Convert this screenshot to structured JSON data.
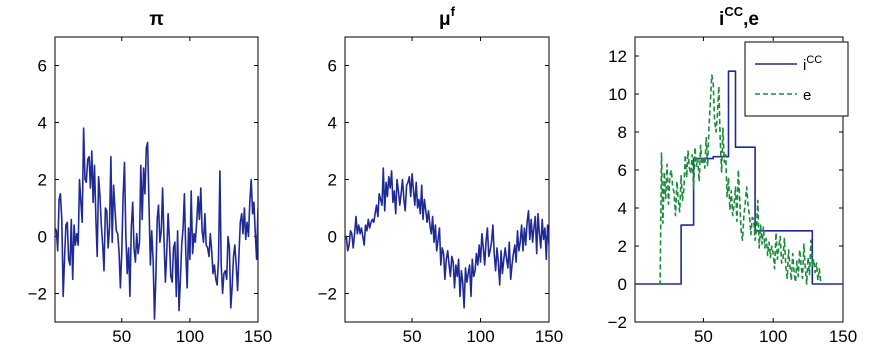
{
  "colors": {
    "blue": "#1f2a96",
    "green": "#1a8c3a"
  },
  "chart_data": [
    {
      "type": "line",
      "title": {
        "main": "π",
        "sup": ""
      },
      "xlim": [
        1,
        150
      ],
      "ylim": [
        -3,
        7
      ],
      "xticks": [
        50,
        100,
        150
      ],
      "yticks": [
        -2,
        0,
        2,
        4,
        6
      ],
      "ytick_labels": [
        "−2",
        "0",
        "2",
        "4",
        "6"
      ],
      "series": [
        {
          "color": "#1f2a96",
          "style": "solid",
          "x": [
            1,
            2,
            3,
            4,
            5,
            6,
            7,
            8,
            9,
            10,
            11,
            12,
            13,
            14,
            15,
            16,
            17,
            18,
            19,
            20,
            21,
            22,
            23,
            24,
            25,
            26,
            27,
            28,
            29,
            30,
            31,
            32,
            33,
            34,
            35,
            36,
            37,
            38,
            39,
            40,
            41,
            42,
            43,
            44,
            45,
            46,
            47,
            48,
            49,
            50,
            51,
            52,
            53,
            54,
            55,
            56,
            57,
            58,
            59,
            60,
            61,
            62,
            63,
            64,
            65,
            66,
            67,
            68,
            69,
            70,
            71,
            72,
            73,
            74,
            75,
            76,
            77,
            78,
            79,
            80,
            81,
            82,
            83,
            84,
            85,
            86,
            87,
            88,
            89,
            90,
            91,
            92,
            93,
            94,
            95,
            96,
            97,
            98,
            99,
            100,
            101,
            102,
            103,
            104,
            105,
            106,
            107,
            108,
            109,
            110,
            111,
            112,
            113,
            114,
            115,
            116,
            117,
            118,
            119,
            120,
            121,
            122,
            123,
            124,
            125,
            126,
            127,
            128,
            129,
            130,
            131,
            132,
            133,
            134,
            135,
            136,
            137,
            138,
            139,
            140,
            141,
            142,
            143,
            144,
            145,
            146,
            147,
            148,
            149,
            150
          ],
          "values": [
            0.3,
            0.2,
            -0.5,
            1.3,
            1.5,
            0.6,
            -2.1,
            -0.8,
            0.4,
            0.5,
            -0.8,
            -1.0,
            0.6,
            -1.5,
            0.4,
            -0.3,
            0.1,
            -0.3,
            2.0,
            1.2,
            0.5,
            3.8,
            2.0,
            1.9,
            2.7,
            2.8,
            1.7,
            3.0,
            1.2,
            2.5,
            0.6,
            -0.7,
            2.1,
            1.4,
            0.4,
            -0.3,
            -1.2,
            1.0,
            0.9,
            -0.4,
            0.3,
            2.8,
            -0.2,
            1.8,
            1.0,
            0.2,
            0.1,
            -0.5,
            -1.8,
            -0.5,
            1.4,
            2.6,
            0.1,
            -1.3,
            -0.4,
            -2.1,
            0.3,
            1.2,
            -0.4,
            -0.9,
            0.1,
            -0.6,
            -0.2,
            2.5,
            0.6,
            2.4,
            1.5,
            3.1,
            3.3,
            1.1,
            -1.0,
            0.2,
            -0.8,
            -2.9,
            -1.5,
            0.6,
            1.1,
            -0.2,
            0.2,
            1.7,
            -0.1,
            -1.6,
            -0.6,
            0.8,
            -0.1,
            -1.4,
            -1.6,
            -0.4,
            -0.2,
            -2.1,
            0.2,
            -2.6,
            -1.6,
            -0.3,
            0.3,
            1.5,
            -0.6,
            -1.8,
            0.3,
            -0.8,
            1.6,
            -0.6,
            0.1,
            -0.2,
            0.5,
            1.4,
            0.6,
            1.7,
            0.2,
            -0.2,
            0.8,
            -0.3,
            -0.4,
            -0.7,
            0.1,
            -0.5,
            -1.3,
            -1.0,
            -1.5,
            -1.7,
            -0.8,
            2.3,
            -1.0,
            -2.0,
            -1.3,
            -1.2,
            -1.5,
            0.0,
            -0.4,
            -2.5,
            -1.8,
            -0.7,
            -0.3,
            -1.0,
            -1.9,
            -0.7,
            0.5,
            0.8,
            0.1,
            1.0,
            -0.1,
            0.5,
            0.0,
            1.2,
            2.0,
            0.8,
            1.2,
            0.1,
            -0.8,
            1.0
          ]
        }
      ]
    },
    {
      "type": "line",
      "title": {
        "main": "μ",
        "sup": "f"
      },
      "xlim": [
        1,
        150
      ],
      "ylim": [
        -3,
        7
      ],
      "xticks": [
        50,
        100,
        150
      ],
      "yticks": [
        -2,
        0,
        2,
        4,
        6
      ],
      "ytick_labels": [
        "−2",
        "0",
        "2",
        "4",
        "6"
      ],
      "series": [
        {
          "color": "#1f2a96",
          "style": "solid",
          "x": [
            1,
            2,
            3,
            4,
            5,
            6,
            7,
            8,
            9,
            10,
            11,
            12,
            13,
            14,
            15,
            16,
            17,
            18,
            19,
            20,
            21,
            22,
            23,
            24,
            25,
            26,
            27,
            28,
            29,
            30,
            31,
            32,
            33,
            34,
            35,
            36,
            37,
            38,
            39,
            40,
            41,
            42,
            43,
            44,
            45,
            46,
            47,
            48,
            49,
            50,
            51,
            52,
            53,
            54,
            55,
            56,
            57,
            58,
            59,
            60,
            61,
            62,
            63,
            64,
            65,
            66,
            67,
            68,
            69,
            70,
            71,
            72,
            73,
            74,
            75,
            76,
            77,
            78,
            79,
            80,
            81,
            82,
            83,
            84,
            85,
            86,
            87,
            88,
            89,
            90,
            91,
            92,
            93,
            94,
            95,
            96,
            97,
            98,
            99,
            100,
            101,
            102,
            103,
            104,
            105,
            106,
            107,
            108,
            109,
            110,
            111,
            112,
            113,
            114,
            115,
            116,
            117,
            118,
            119,
            120,
            121,
            122,
            123,
            124,
            125,
            126,
            127,
            128,
            129,
            130,
            131,
            132,
            133,
            134,
            135,
            136,
            137,
            138,
            139,
            140,
            141,
            142,
            143,
            144,
            145,
            146,
            147,
            148,
            149,
            150
          ],
          "values": [
            -0.1,
            0.0,
            -0.5,
            -0.3,
            0.2,
            0.1,
            -0.4,
            0.1,
            0.7,
            0.1,
            0.4,
            0.1,
            0.3,
            0.0,
            -0.3,
            0.4,
            0.2,
            0.6,
            0.3,
            0.5,
            0.6,
            0.5,
            0.8,
            1.1,
            0.7,
            1.5,
            1.3,
            1.1,
            2.4,
            0.9,
            1.9,
            1.4,
            2.1,
            1.7,
            2.3,
            1.2,
            1.6,
            0.8,
            2.0,
            1.6,
            1.1,
            1.5,
            2.0,
            1.3,
            0.9,
            1.8,
            1.9,
            2.1,
            1.4,
            2.2,
            1.6,
            1.1,
            1.9,
            1.0,
            1.3,
            0.8,
            1.8,
            0.6,
            1.3,
            0.9,
            0.5,
            0.9,
            0.4,
            0.1,
            0.7,
            -0.2,
            0.4,
            -0.5,
            -0.1,
            0.3,
            -1.0,
            -0.4,
            -0.6,
            -1.5,
            -0.8,
            -0.5,
            -1.0,
            -1.4,
            -0.7,
            -0.9,
            -1.8,
            -1.0,
            -1.4,
            -0.8,
            -2.1,
            -1.2,
            -1.6,
            -2.5,
            -1.1,
            -1.6,
            -1.3,
            -1.0,
            -2.1,
            -0.8,
            -1.4,
            -1.2,
            -0.6,
            -1.0,
            -0.3,
            -0.9,
            0.1,
            -0.4,
            -1.0,
            -0.2,
            0.3,
            -0.7,
            -0.5,
            -0.2,
            0.4,
            -0.6,
            -1.2,
            -0.4,
            -0.9,
            -1.7,
            -0.5,
            -1.3,
            -0.8,
            -0.4,
            -0.8,
            -1.1,
            -0.2,
            -1.5,
            -1.0,
            -0.6,
            -0.3,
            -0.9,
            0.2,
            -0.5,
            -0.2,
            0.4,
            -0.5,
            0.3,
            -0.3,
            0.5,
            0.9,
            -0.1,
            0.6,
            -0.2,
            0.3,
            0.7,
            -0.6,
            0.8,
            0.1,
            -0.4,
            0.6,
            -0.1,
            0.3,
            -0.8,
            0.4,
            -0.3
          ]
        }
      ]
    },
    {
      "type": "line",
      "title": {
        "main": "i",
        "sup": "CC",
        "suffix": ",e"
      },
      "xlim": [
        1,
        150
      ],
      "ylim": [
        -2,
        13
      ],
      "xticks": [
        50,
        100,
        150
      ],
      "yticks": [
        -2,
        0,
        2,
        4,
        6,
        8,
        10,
        12
      ],
      "ytick_labels": [
        "−2",
        "0",
        "2",
        "4",
        "6",
        "8",
        "10",
        "12"
      ],
      "legend": {
        "position": "top-right",
        "entries": [
          {
            "main": "i",
            "sup": "CC",
            "color": "#1f2a96",
            "style": "solid"
          },
          {
            "main": "e",
            "sup": "",
            "color": "#1a8c3a",
            "style": "dashed"
          }
        ]
      },
      "series": [
        {
          "name": "i^CC",
          "color": "#1f2a96",
          "style": "solid",
          "x": [
            1,
            34,
            34,
            43,
            43,
            57,
            57,
            68,
            68,
            73,
            73,
            87,
            87,
            102,
            102,
            128,
            128,
            150
          ],
          "values": [
            0,
            0,
            3.1,
            3.1,
            6.6,
            6.6,
            6.7,
            6.7,
            11.2,
            11.2,
            7.2,
            7.2,
            2.8,
            2.8,
            2.8,
            2.8,
            0,
            0
          ]
        },
        {
          "name": "e",
          "color": "#1a8c3a",
          "style": "dashed",
          "x": [
            18,
            19,
            20,
            21,
            22,
            23,
            24,
            25,
            26,
            27,
            28,
            29,
            30,
            31,
            32,
            33,
            34,
            35,
            36,
            37,
            38,
            39,
            40,
            41,
            42,
            43,
            44,
            45,
            46,
            47,
            48,
            49,
            50,
            51,
            52,
            53,
            54,
            55,
            56,
            57,
            58,
            59,
            60,
            61,
            62,
            63,
            64,
            65,
            66,
            67,
            68,
            69,
            70,
            71,
            72,
            73,
            74,
            75,
            76,
            77,
            78,
            79,
            80,
            81,
            82,
            83,
            84,
            85,
            86,
            87,
            88,
            89,
            90,
            91,
            92,
            93,
            94,
            95,
            96,
            97,
            98,
            99,
            100,
            101,
            102,
            103,
            104,
            105,
            106,
            107,
            108,
            109,
            110,
            111,
            112,
            113,
            114,
            115,
            116,
            117,
            118,
            119,
            120,
            121,
            122,
            123,
            124,
            125,
            126,
            127,
            128,
            129,
            130,
            131,
            132,
            133,
            134,
            135
          ],
          "values": [
            0,
            0,
            6.9,
            3.2,
            5.9,
            4.5,
            6.3,
            4.2,
            5.7,
            6.0,
            5.1,
            4.8,
            3.6,
            5.4,
            4.4,
            3.8,
            5.7,
            4.4,
            5.0,
            6.8,
            5.6,
            7.0,
            6.1,
            5.8,
            6.8,
            5.0,
            7.2,
            6.2,
            6.6,
            5.4,
            7.3,
            6.3,
            6.7,
            6.1,
            7.7,
            6.2,
            8.3,
            9.6,
            11.0,
            10.6,
            8.6,
            8.0,
            8.9,
            10.4,
            7.6,
            5.9,
            8.2,
            6.4,
            6.8,
            4.6,
            5.6,
            3.9,
            4.9,
            3.6,
            4.2,
            5.1,
            3.3,
            6.0,
            4.5,
            2.8,
            2.3,
            3.6,
            4.3,
            5.1,
            4.1,
            3.6,
            2.6,
            3.5,
            3.4,
            2.3,
            2.8,
            4.4,
            1.9,
            3.1,
            2.1,
            3.0,
            1.9,
            2.4,
            1.5,
            2.2,
            1.4,
            2.0,
            1.6,
            0.8,
            2.7,
            1.3,
            2.0,
            2.5,
            1.1,
            1.3,
            2.4,
            0.9,
            0.3,
            1.8,
            0.9,
            0.2,
            1.6,
            0.6,
            0.1,
            1.2,
            0.4,
            1.8,
            1.0,
            0.3,
            2.1,
            0.8,
            0.0,
            1.4,
            0.5,
            2.3,
            0.9,
            1.3,
            0.6,
            1.1,
            0.2,
            0.8,
            0.1,
            0.0
          ]
        }
      ]
    }
  ]
}
